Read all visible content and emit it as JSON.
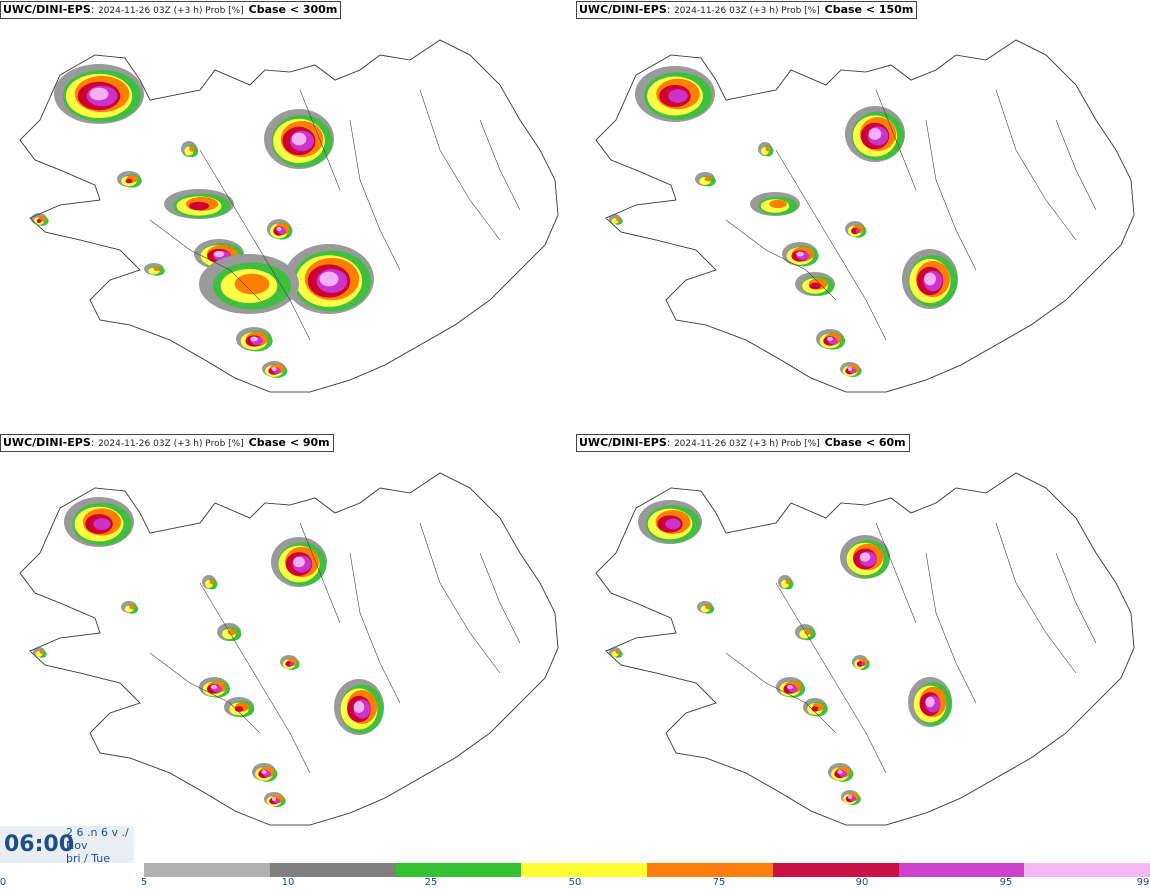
{
  "panels": [
    {
      "model": "UWC/DINI-EPS",
      "info": "2024-11-26 03Z (+3 h) Prob [%]",
      "param": "Cbase < 300m"
    },
    {
      "model": "UWC/DINI-EPS",
      "info": "2024-11-26 03Z (+3 h) Prob [%]",
      "param": "Cbase < 150m"
    },
    {
      "model": "UWC/DINI-EPS",
      "info": "2024-11-26 03Z (+3 h) Prob [%]",
      "param": "Cbase < 90m"
    },
    {
      "model": "UWC/DINI-EPS",
      "info": "2024-11-26 03Z (+3 h) Prob [%]",
      "param": "Cbase < 60m"
    }
  ],
  "valid_time": {
    "time": "06:00",
    "line1": "2 6 .n 6 v ./",
    "line2": "Nov",
    "line3": "þri / Tue"
  },
  "legend": {
    "ticks": [
      "0",
      "5",
      "10",
      "25",
      "50",
      "75",
      "90",
      "95",
      "99"
    ],
    "colors": [
      "#b0b0b0",
      "#808080",
      "#33c133",
      "#ffff33",
      "#ff7f0e",
      "#cc1144",
      "#cc44cc",
      "#f5b8f5"
    ]
  },
  "map_colors": {
    "c10": "#9a9a9a",
    "c25": "#3fbf3f",
    "c50": "#ffff44",
    "c75": "#ff8000",
    "c90": "#cc0033",
    "c95": "#cc33cc",
    "c99": "#f5b0f5",
    "outline": "#444444"
  }
}
